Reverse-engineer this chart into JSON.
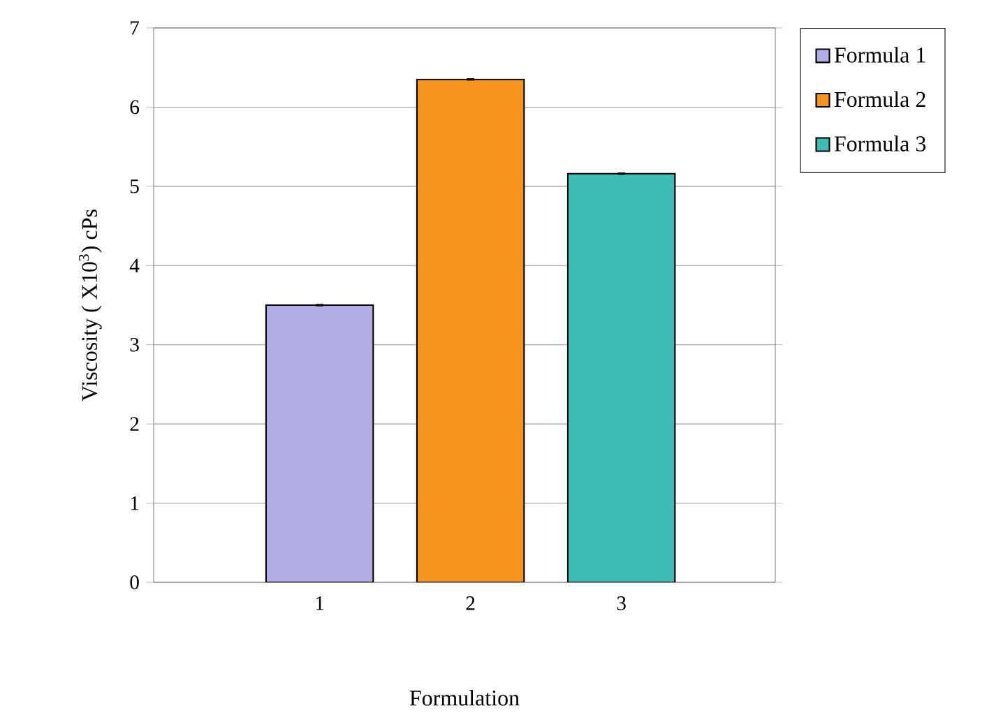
{
  "chart_data": {
    "type": "bar",
    "xlabel": "Formulation",
    "ylabel": "Viscosity ( X10$^{3}$) cPs",
    "categories": [
      "1",
      "2",
      "3"
    ],
    "series": [
      {
        "name": "Formula 1",
        "color": "#b4aee6",
        "values": [
          3.5,
          null,
          null
        ],
        "errors": [
          0.01,
          null,
          null
        ]
      },
      {
        "name": "Formula 2",
        "color": "#f7941d",
        "values": [
          null,
          6.35,
          null
        ],
        "errors": [
          null,
          0.01,
          null
        ]
      },
      {
        "name": "Formula 3",
        "color": "#3dbdb5",
        "values": [
          null,
          null,
          5.16
        ],
        "errors": [
          null,
          null,
          0.01
        ]
      }
    ],
    "ylim": [
      0,
      7
    ],
    "yticks": [
      0,
      1,
      2,
      3,
      4,
      5,
      6,
      7
    ],
    "grid": "y",
    "legend": "top right"
  }
}
